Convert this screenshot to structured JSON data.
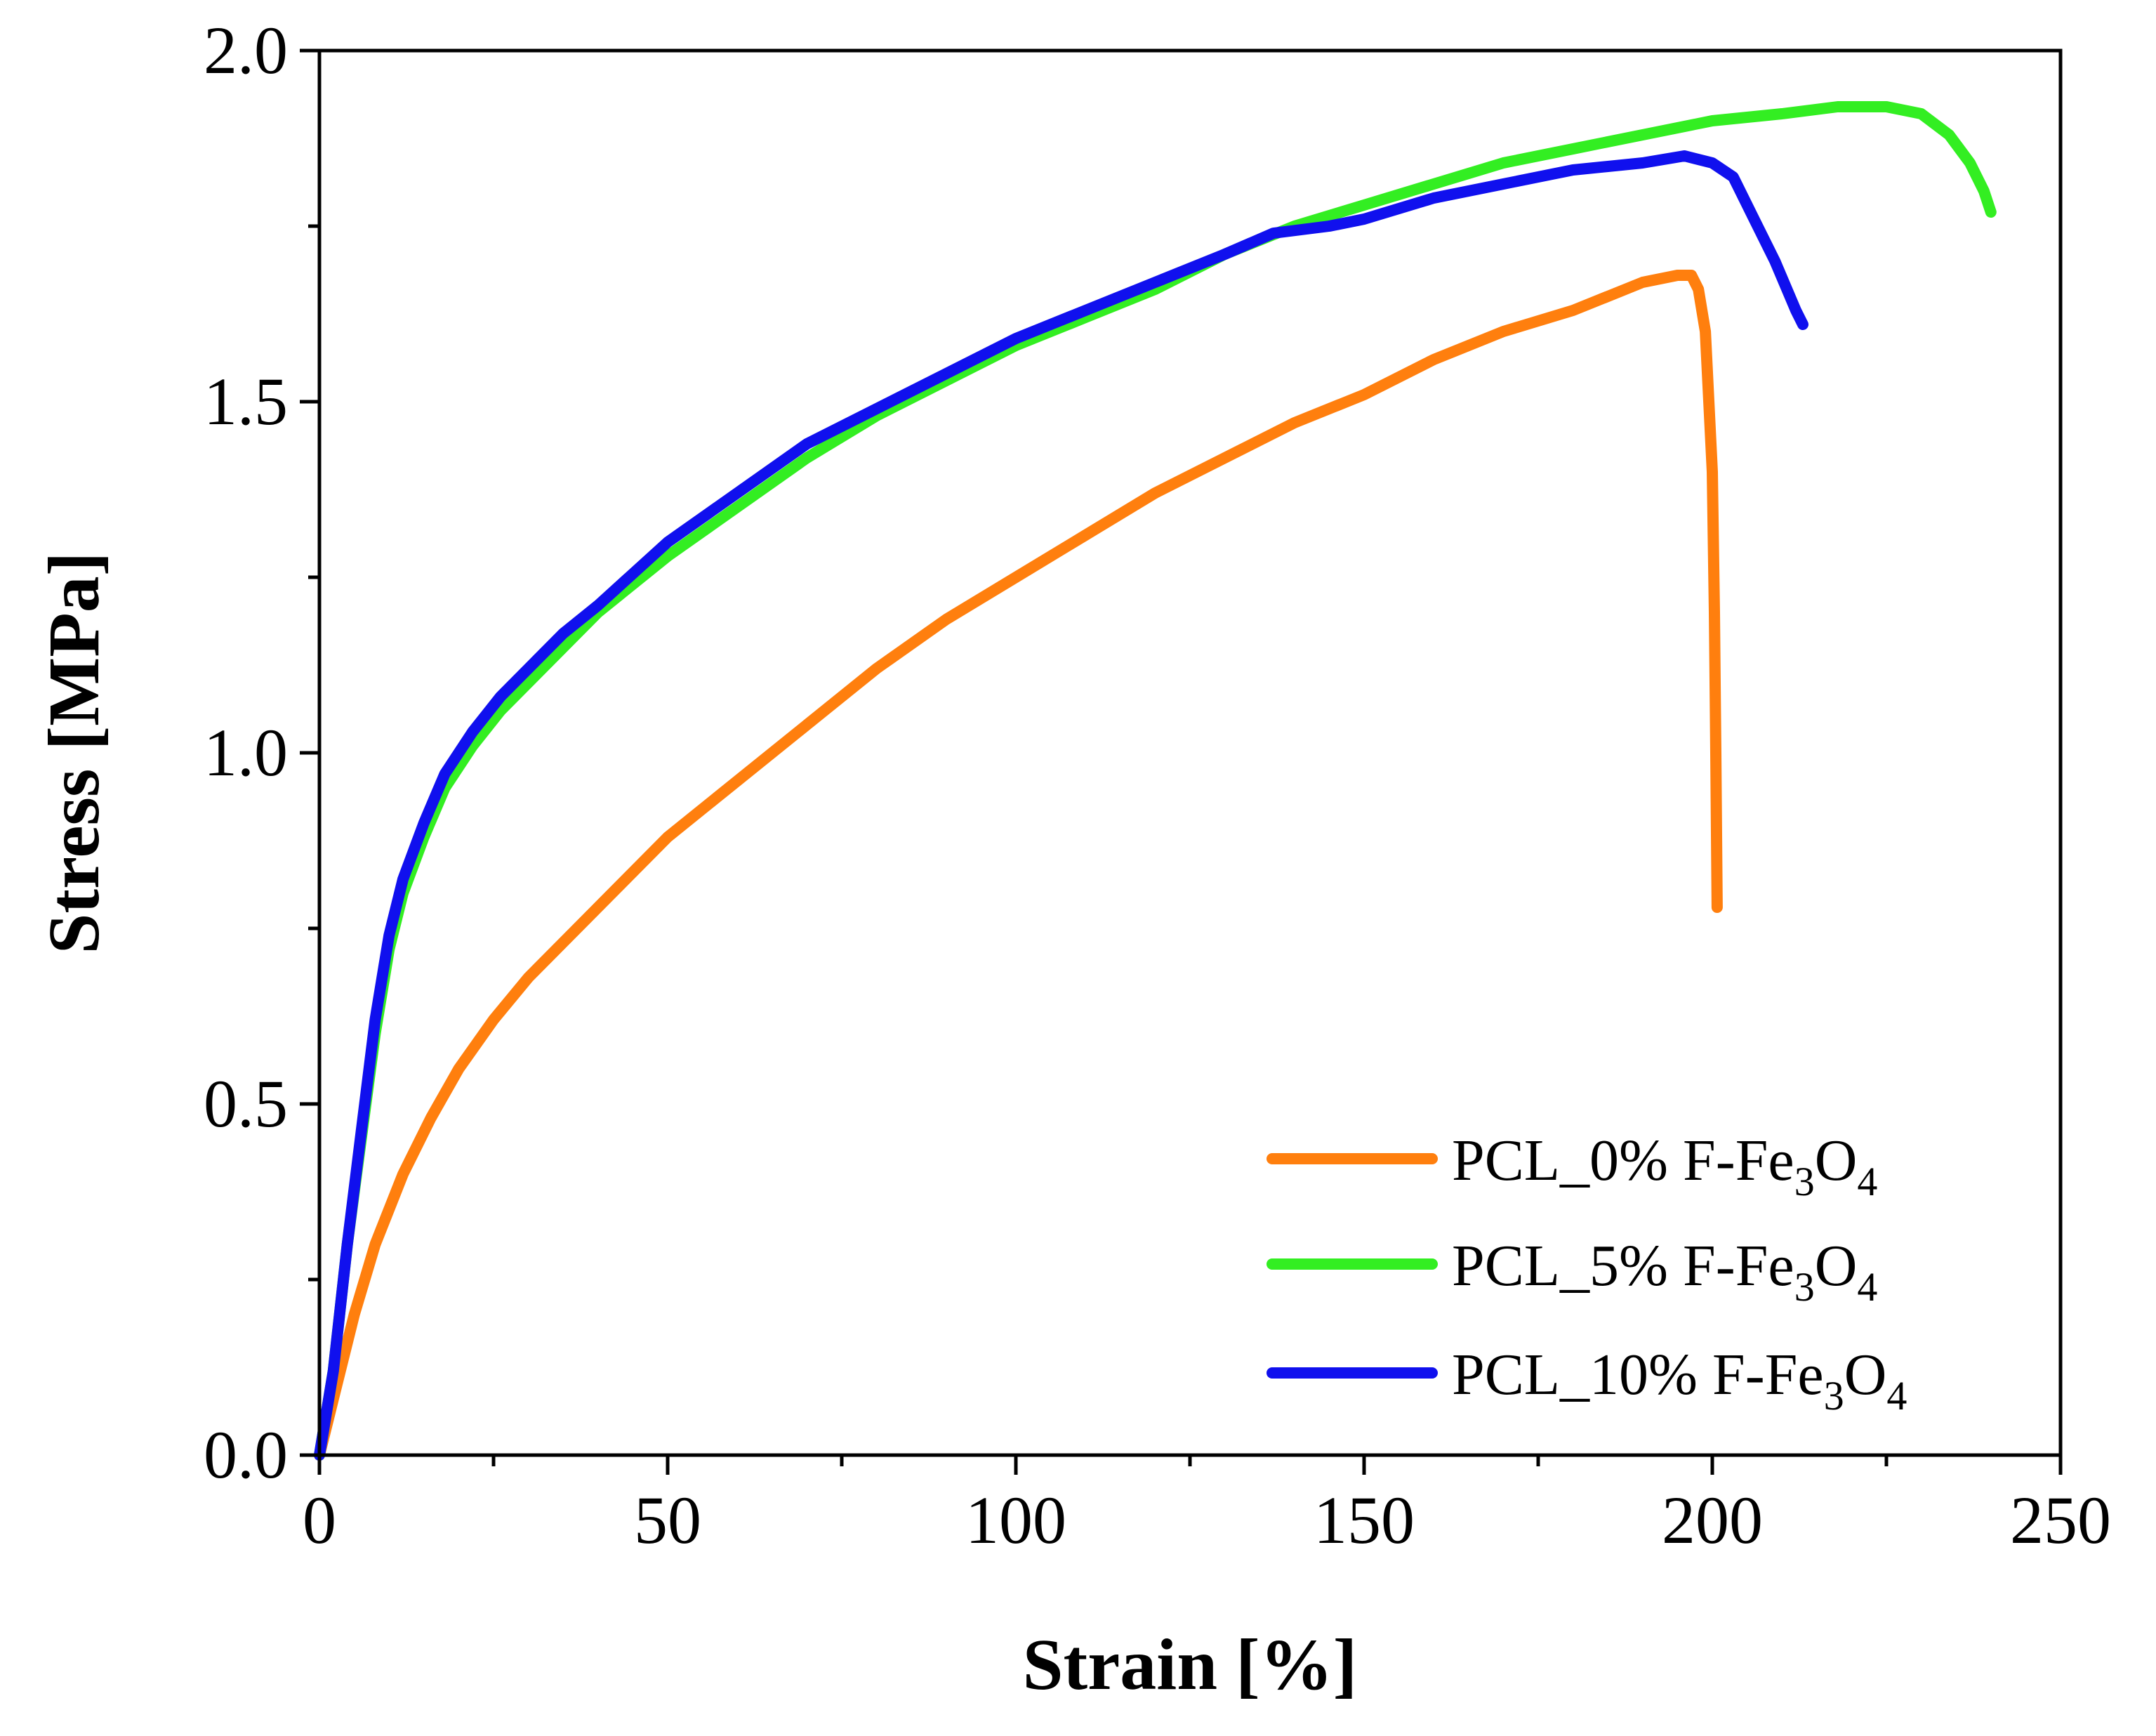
{
  "chart_data": {
    "type": "line",
    "title": "",
    "xlabel": "Strain [%]",
    "ylabel": "Stress [MPa]",
    "xlim": [
      0,
      250
    ],
    "ylim": [
      0,
      2.0
    ],
    "x_ticks": [
      "0",
      "50",
      "100",
      "150",
      "200",
      "250"
    ],
    "y_ticks": [
      "0.0",
      "0.5",
      "1.0",
      "1.5",
      "2.0"
    ],
    "grid": false,
    "legend_position": "bottom-right",
    "series": [
      {
        "name": "PCL_0% F-Fe3O4",
        "label_main": "PCL_0% F-Fe",
        "sub1": "3",
        "mid": "O",
        "sub2": "4",
        "color": "#ff7f0e",
        "points": [
          [
            0,
            0
          ],
          [
            2,
            0.08
          ],
          [
            5,
            0.2
          ],
          [
            8,
            0.3
          ],
          [
            12,
            0.4
          ],
          [
            16,
            0.48
          ],
          [
            20,
            0.55
          ],
          [
            25,
            0.62
          ],
          [
            30,
            0.68
          ],
          [
            35,
            0.73
          ],
          [
            40,
            0.78
          ],
          [
            45,
            0.83
          ],
          [
            50,
            0.88
          ],
          [
            60,
            0.96
          ],
          [
            70,
            1.04
          ],
          [
            80,
            1.12
          ],
          [
            90,
            1.19
          ],
          [
            100,
            1.25
          ],
          [
            110,
            1.31
          ],
          [
            120,
            1.37
          ],
          [
            130,
            1.42
          ],
          [
            140,
            1.47
          ],
          [
            150,
            1.51
          ],
          [
            160,
            1.56
          ],
          [
            170,
            1.6
          ],
          [
            180,
            1.63
          ],
          [
            190,
            1.67
          ],
          [
            195,
            1.68
          ],
          [
            197,
            1.68
          ],
          [
            198,
            1.66
          ],
          [
            199,
            1.6
          ],
          [
            200,
            1.4
          ],
          [
            200.3,
            1.2
          ],
          [
            200.5,
            1.0
          ],
          [
            200.7,
            0.78
          ]
        ]
      },
      {
        "name": "PCL_5% F-Fe3O4",
        "label_main": "PCL_5% F-Fe",
        "sub1": "3",
        "mid": "O",
        "sub2": "4",
        "color": "#33ee22",
        "points": [
          [
            0,
            0
          ],
          [
            2,
            0.12
          ],
          [
            4,
            0.3
          ],
          [
            6,
            0.45
          ],
          [
            8,
            0.6
          ],
          [
            10,
            0.72
          ],
          [
            12,
            0.8
          ],
          [
            15,
            0.88
          ],
          [
            18,
            0.95
          ],
          [
            22,
            1.01
          ],
          [
            26,
            1.06
          ],
          [
            30,
            1.1
          ],
          [
            35,
            1.15
          ],
          [
            40,
            1.2
          ],
          [
            50,
            1.28
          ],
          [
            60,
            1.35
          ],
          [
            70,
            1.42
          ],
          [
            80,
            1.48
          ],
          [
            90,
            1.53
          ],
          [
            100,
            1.58
          ],
          [
            110,
            1.62
          ],
          [
            120,
            1.66
          ],
          [
            130,
            1.71
          ],
          [
            140,
            1.75
          ],
          [
            150,
            1.78
          ],
          [
            160,
            1.81
          ],
          [
            170,
            1.84
          ],
          [
            180,
            1.86
          ],
          [
            190,
            1.88
          ],
          [
            200,
            1.9
          ],
          [
            210,
            1.91
          ],
          [
            218,
            1.92
          ],
          [
            225,
            1.92
          ],
          [
            230,
            1.91
          ],
          [
            234,
            1.88
          ],
          [
            237,
            1.84
          ],
          [
            239,
            1.8
          ],
          [
            240,
            1.77
          ]
        ]
      },
      {
        "name": "PCL_10% F-Fe3O4",
        "label_main": "PCL_10% F-Fe",
        "sub1": "3",
        "mid": "O",
        "sub2": "4",
        "color": "#1010ee",
        "points": [
          [
            0,
            0
          ],
          [
            2,
            0.12
          ],
          [
            4,
            0.3
          ],
          [
            6,
            0.46
          ],
          [
            8,
            0.62
          ],
          [
            10,
            0.74
          ],
          [
            12,
            0.82
          ],
          [
            15,
            0.9
          ],
          [
            18,
            0.97
          ],
          [
            22,
            1.03
          ],
          [
            26,
            1.08
          ],
          [
            30,
            1.12
          ],
          [
            35,
            1.17
          ],
          [
            40,
            1.21
          ],
          [
            50,
            1.3
          ],
          [
            60,
            1.37
          ],
          [
            70,
            1.44
          ],
          [
            80,
            1.49
          ],
          [
            90,
            1.54
          ],
          [
            100,
            1.59
          ],
          [
            110,
            1.63
          ],
          [
            120,
            1.67
          ],
          [
            130,
            1.71
          ],
          [
            137,
            1.74
          ],
          [
            145,
            1.75
          ],
          [
            150,
            1.76
          ],
          [
            160,
            1.79
          ],
          [
            170,
            1.81
          ],
          [
            180,
            1.83
          ],
          [
            190,
            1.84
          ],
          [
            196,
            1.85
          ],
          [
            200,
            1.84
          ],
          [
            203,
            1.82
          ],
          [
            206,
            1.76
          ],
          [
            209,
            1.7
          ],
          [
            212,
            1.63
          ],
          [
            213,
            1.61
          ]
        ]
      }
    ]
  }
}
